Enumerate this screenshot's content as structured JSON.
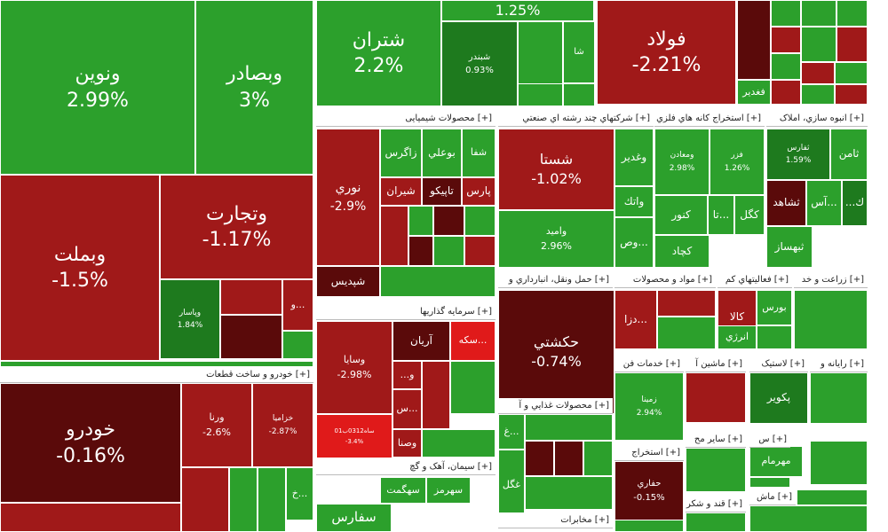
{
  "chart_data": {
    "type": "treemap",
    "metric": "percent change",
    "colors": {
      "up": "#2ca02c",
      "up_light": "#44b52c",
      "up_dark": "#1e7a1e",
      "down": "#a01919",
      "down_dark": "#5a0a0a",
      "down_bright": "#e01a1a"
    },
    "groups": [
      "خودرو و ساخت قطعات [+]",
      "محصولات شیمیایی [+]",
      "شرکتهاي چند رشته اي صنعتي [+]",
      "استخراج کانه هاي فلزي [+]",
      "انبوه سازي، املاک [+]",
      "سرمایه گذاریها [+]",
      "حمل ونقل، انبارداري و [+]",
      "مواد و محصولات [+]",
      "فعالیتهاي کم [+]",
      "زراعت و خد [+]",
      "خدمات فن [+]",
      "ماشين آ [+]",
      "لاستیک [+]",
      "رايانه و [+]",
      "محصولات غذايي و آ [+]",
      "استخراج [+]",
      "سایر مح [+]",
      "س [+]",
      "سیمان، آهک و گچ [+]",
      "قند و شکر [+]",
      "ماش [+]",
      "مخابرات [+]"
    ],
    "stocks": [
      {
        "name": "ونوين",
        "change": "2.99%"
      },
      {
        "name": "وبصادر",
        "change": "3%"
      },
      {
        "name": "شتران",
        "change": "2.2%"
      },
      {
        "name": "1.25%",
        "change": ""
      },
      {
        "name": "فولاد",
        "change": "-2.21%"
      },
      {
        "name": "شبندر",
        "change": "0.93%"
      },
      {
        "name": "شا",
        "change": ""
      },
      {
        "name": "فغدير",
        "change": ""
      },
      {
        "name": "وبملت",
        "change": "-1.5%"
      },
      {
        "name": "وتجارت",
        "change": "-1.17%"
      },
      {
        "name": "وپاسار",
        "change": "1.84%"
      },
      {
        "name": "و...",
        "change": ""
      },
      {
        "name": "خودرو",
        "change": "-0.16%"
      },
      {
        "name": "ورنا",
        "change": "-2.6%"
      },
      {
        "name": "خزامیا",
        "change": "-2.87%"
      },
      {
        "name": "خ...",
        "change": ""
      },
      {
        "name": "نوري",
        "change": "-2.9%"
      },
      {
        "name": "شپديس",
        "change": ""
      },
      {
        "name": "زاگرس",
        "change": ""
      },
      {
        "name": "بوعلي",
        "change": ""
      },
      {
        "name": "شفا",
        "change": ""
      },
      {
        "name": "شيران",
        "change": ""
      },
      {
        "name": "تاپيكو",
        "change": ""
      },
      {
        "name": "پارس",
        "change": ""
      },
      {
        "name": "شستا",
        "change": "-1.02%"
      },
      {
        "name": "وغدير",
        "change": ""
      },
      {
        "name": "واتك",
        "change": ""
      },
      {
        "name": "واميد",
        "change": "2.96%"
      },
      {
        "name": "وص...",
        "change": ""
      },
      {
        "name": "ومعادن",
        "change": "2.98%"
      },
      {
        "name": "فزر",
        "change": "1.26%"
      },
      {
        "name": "كنور",
        "change": ""
      },
      {
        "name": "تا...",
        "change": ""
      },
      {
        "name": "كگل",
        "change": ""
      },
      {
        "name": "كچاد",
        "change": ""
      },
      {
        "name": "ثفارس",
        "change": "1.59%"
      },
      {
        "name": "ثامن",
        "change": ""
      },
      {
        "name": "ثشاهد",
        "change": ""
      },
      {
        "name": "آس...",
        "change": ""
      },
      {
        "name": "...ك",
        "change": ""
      },
      {
        "name": "ثبهساز",
        "change": ""
      },
      {
        "name": "وسايا",
        "change": "-2.98%"
      },
      {
        "name": "آريان",
        "change": ""
      },
      {
        "name": "سكه...",
        "change": ""
      },
      {
        "name": "ساه0312ب01",
        "change": "-3.4%"
      },
      {
        "name": "...و",
        "change": ""
      },
      {
        "name": "س...",
        "change": ""
      },
      {
        "name": "وصنا",
        "change": ""
      },
      {
        "name": "حكشتي",
        "change": "-0.74%"
      },
      {
        "name": "حپ...",
        "change": ""
      },
      {
        "name": "دزا...",
        "change": ""
      },
      {
        "name": "كالا",
        "change": ""
      },
      {
        "name": "بورس",
        "change": ""
      },
      {
        "name": "انرژي",
        "change": ""
      },
      {
        "name": "زمينا",
        "change": "2.94%"
      },
      {
        "name": "پكوير",
        "change": ""
      },
      {
        "name": "غ...",
        "change": ""
      },
      {
        "name": "غگل",
        "change": ""
      },
      {
        "name": "حفاري",
        "change": "-0.15%"
      },
      {
        "name": "مهرمام",
        "change": ""
      },
      {
        "name": "سهگمت",
        "change": ""
      },
      {
        "name": "سهرمز",
        "change": ""
      },
      {
        "name": "سفارس",
        "change": ""
      }
    ]
  }
}
